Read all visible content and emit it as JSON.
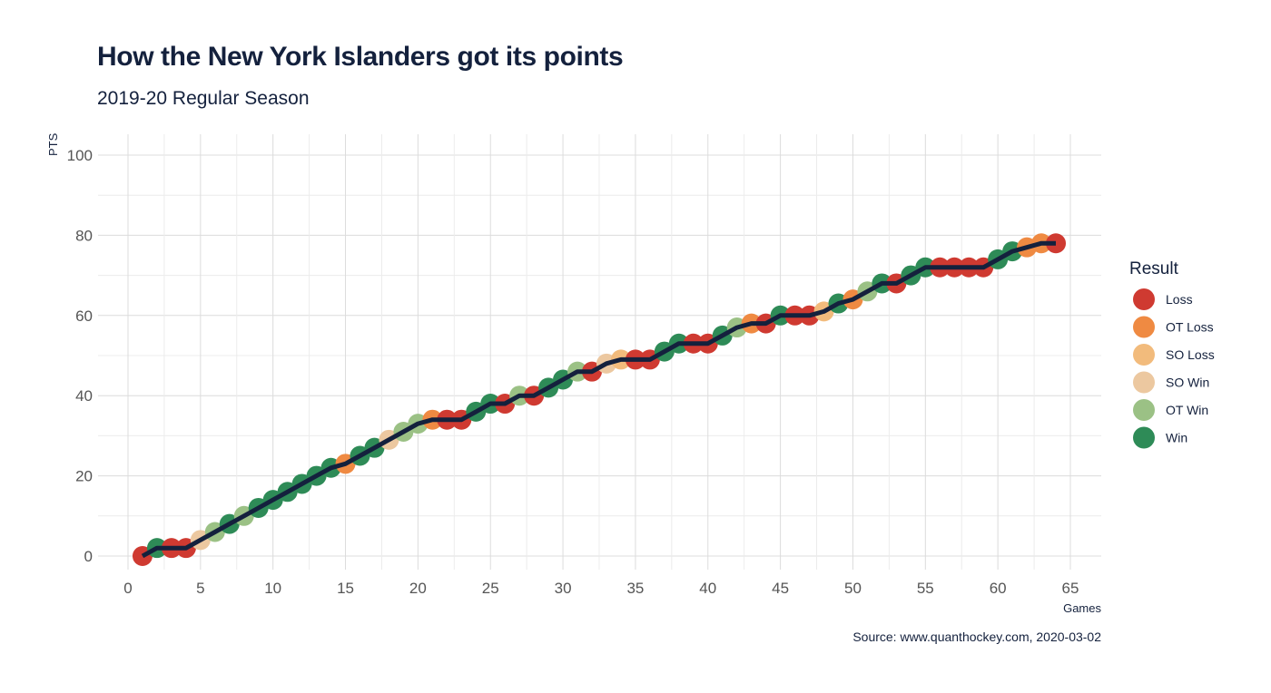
{
  "chart_data": {
    "type": "line",
    "title": "How the New York Islanders got its points",
    "subtitle": "2019-20 Regular Season",
    "xlabel": "Games",
    "ylabel": "PTS",
    "xlim": [
      0,
      66
    ],
    "ylim": [
      -3,
      100
    ],
    "xticks": [
      0,
      5,
      10,
      15,
      20,
      25,
      30,
      35,
      40,
      45,
      50,
      55,
      60,
      65
    ],
    "yticks": [
      0,
      20,
      40,
      60,
      80,
      100
    ],
    "grid": true,
    "legend": {
      "title": "Result",
      "position": "right",
      "items": [
        {
          "label": "Loss",
          "color": "#cf3a31"
        },
        {
          "label": "OT Loss",
          "color": "#ef8a42"
        },
        {
          "label": "SO Loss",
          "color": "#f2bb7c"
        },
        {
          "label": "SO Win",
          "color": "#ecc8a0"
        },
        {
          "label": "OT Win",
          "color": "#9bc185"
        },
        {
          "label": "Win",
          "color": "#2e8b57"
        }
      ]
    },
    "line_color": "#14213d",
    "x": [
      1,
      2,
      3,
      4,
      5,
      6,
      7,
      8,
      9,
      10,
      11,
      12,
      13,
      14,
      15,
      16,
      17,
      18,
      19,
      20,
      21,
      22,
      23,
      24,
      25,
      26,
      27,
      28,
      29,
      30,
      31,
      32,
      33,
      34,
      35,
      36,
      37,
      38,
      39,
      40,
      41,
      42,
      43,
      44,
      45,
      46,
      47,
      48,
      49,
      50,
      51,
      52,
      53,
      54,
      55,
      56,
      57,
      58,
      59,
      60,
      61,
      62,
      63,
      64
    ],
    "points": [
      0,
      2,
      2,
      2,
      4,
      6,
      8,
      10,
      12,
      14,
      16,
      18,
      20,
      22,
      23,
      25,
      27,
      29,
      31,
      33,
      34,
      34,
      34,
      36,
      38,
      38,
      40,
      40,
      42,
      44,
      46,
      46,
      48,
      49,
      49,
      49,
      51,
      53,
      53,
      53,
      55,
      57,
      58,
      58,
      60,
      60,
      60,
      61,
      63,
      64,
      66,
      68,
      68,
      70,
      72,
      72,
      72,
      72,
      72,
      74,
      76,
      77,
      78,
      78
    ],
    "results": [
      "Loss",
      "Win",
      "Loss",
      "Loss",
      "SO Win",
      "OT Win",
      "Win",
      "OT Win",
      "Win",
      "Win",
      "Win",
      "Win",
      "Win",
      "Win",
      "OT Loss",
      "Win",
      "Win",
      "SO Win",
      "OT Win",
      "OT Win",
      "OT Loss",
      "Loss",
      "Loss",
      "Win",
      "Win",
      "Loss",
      "OT Win",
      "Loss",
      "Win",
      "Win",
      "OT Win",
      "Loss",
      "SO Win",
      "SO Loss",
      "Loss",
      "Loss",
      "Win",
      "Win",
      "Loss",
      "Loss",
      "Win",
      "OT Win",
      "OT Loss",
      "Loss",
      "Win",
      "Loss",
      "Loss",
      "SO Loss",
      "Win",
      "OT Loss",
      "OT Win",
      "Win",
      "Loss",
      "Win",
      "Win",
      "Loss",
      "Loss",
      "Loss",
      "Loss",
      "Win",
      "Win",
      "OT Loss",
      "OT Loss",
      "Loss"
    ]
  },
  "source": "Source: www.quanthockey.com, 2020-03-02"
}
